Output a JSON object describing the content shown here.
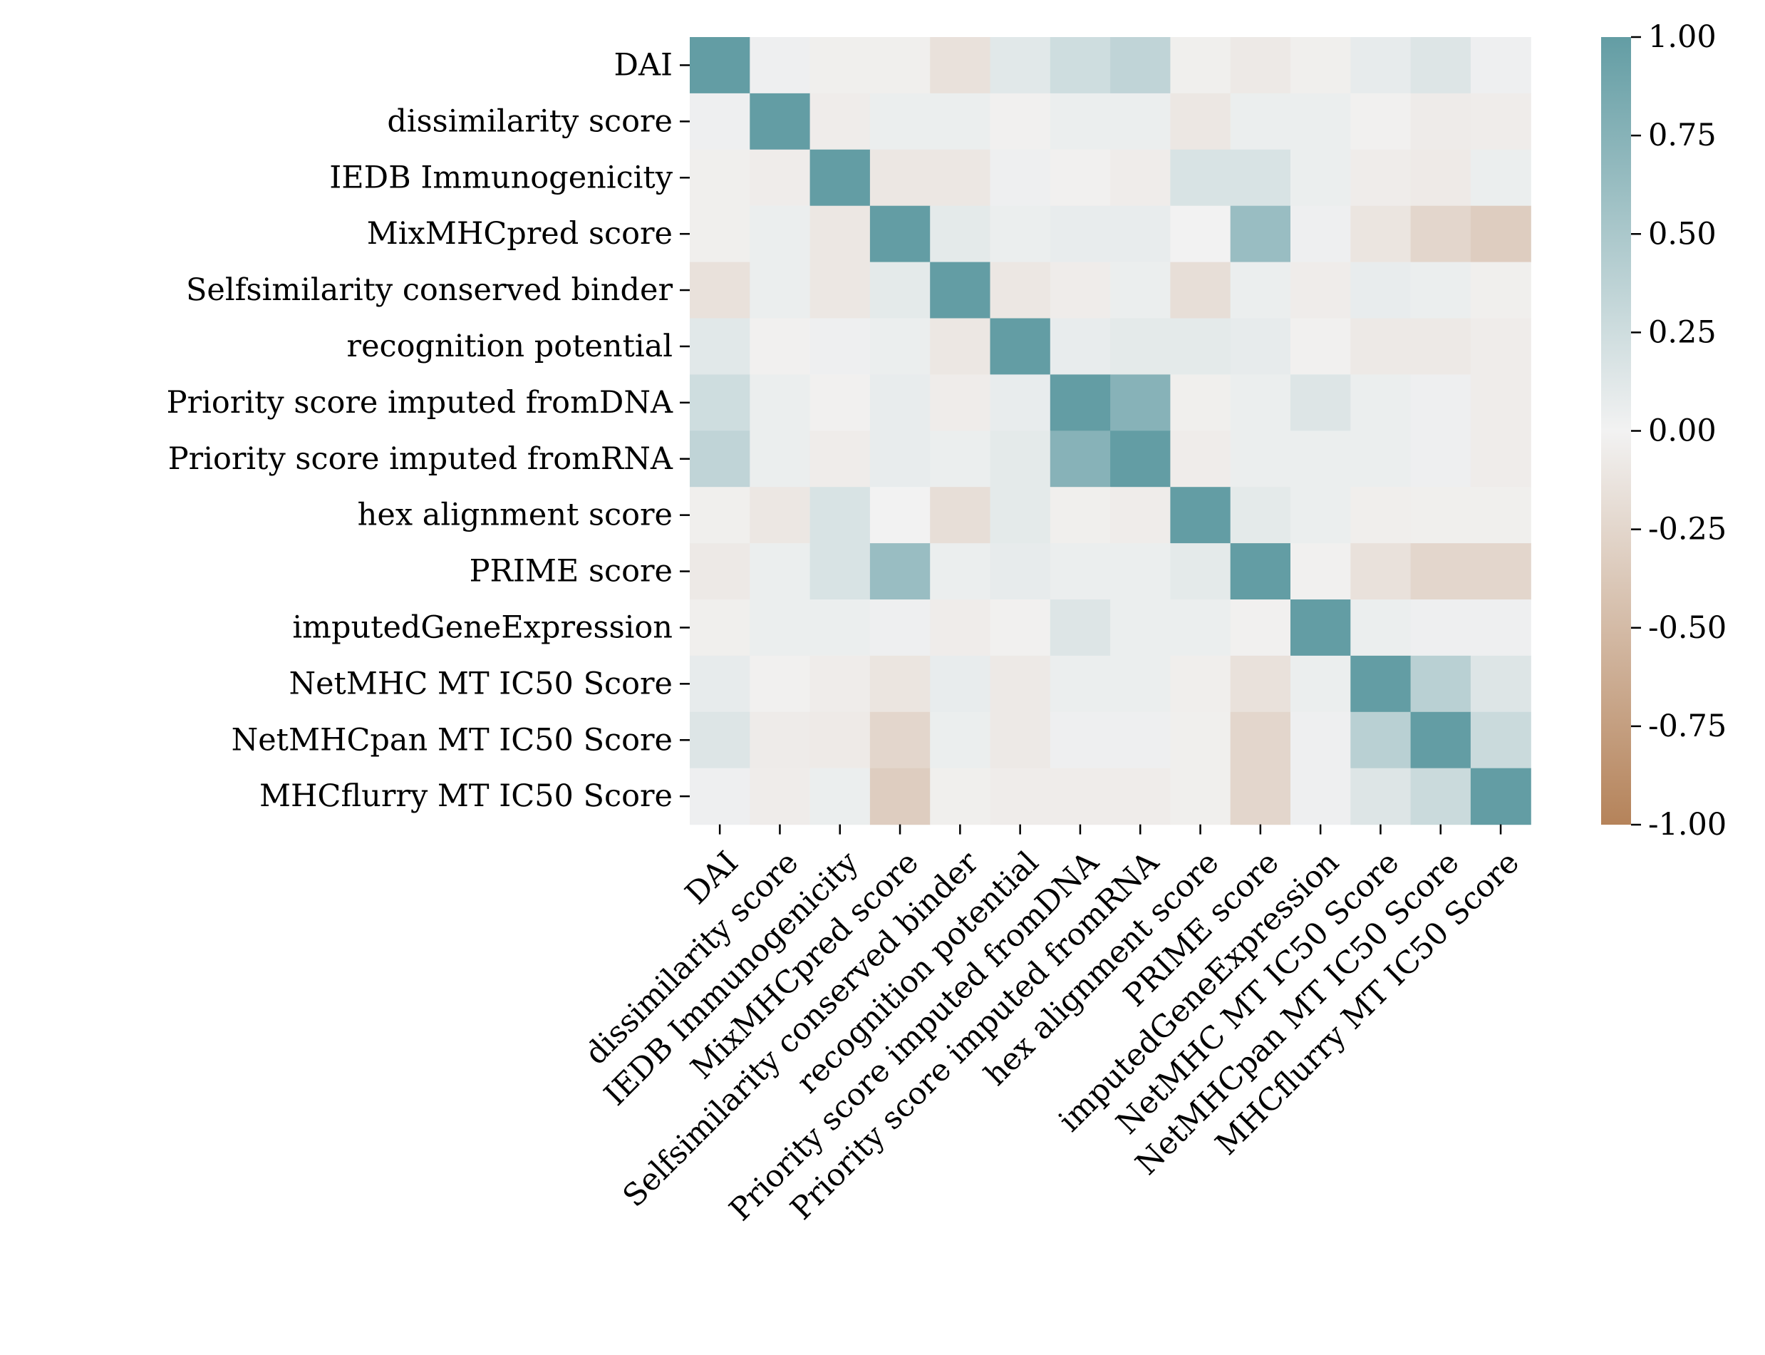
{
  "chart_data": {
    "type": "heatmap",
    "title": "",
    "xlabel": "",
    "ylabel": "",
    "labels": [
      "DAI",
      "dissimilarity score",
      "IEDB Immunogenicity",
      "MixMHCpred score",
      "Selfsimilarity conserved binder",
      "recognition potential",
      "Priority score imputed fromDNA",
      "Priority score imputed fromRNA",
      "hex alignment score",
      "PRIME score",
      "imputedGeneExpression",
      "NetMHC MT IC50 Score",
      "NetMHCpan MT IC50 Score",
      "MHCflurry MT IC50 Score"
    ],
    "matrix": [
      [
        1.0,
        0.03,
        -0.03,
        -0.03,
        -0.15,
        0.12,
        0.25,
        0.35,
        -0.03,
        -0.08,
        -0.03,
        0.08,
        0.15,
        0.03
      ],
      [
        0.03,
        1.0,
        -0.05,
        0.05,
        0.05,
        -0.02,
        0.05,
        0.05,
        -0.1,
        0.05,
        0.05,
        -0.02,
        -0.06,
        -0.05
      ],
      [
        -0.03,
        -0.05,
        1.0,
        -0.1,
        -0.1,
        0.03,
        -0.02,
        -0.05,
        0.18,
        0.18,
        0.05,
        -0.05,
        -0.07,
        0.05
      ],
      [
        -0.03,
        0.05,
        -0.1,
        1.0,
        0.1,
        0.05,
        0.07,
        0.07,
        0.0,
        0.62,
        0.03,
        -0.12,
        -0.25,
        -0.33
      ],
      [
        -0.15,
        0.05,
        -0.1,
        0.1,
        1.0,
        -0.1,
        -0.05,
        0.05,
        -0.18,
        0.05,
        -0.05,
        0.07,
        0.05,
        -0.03
      ],
      [
        0.12,
        -0.02,
        0.03,
        0.05,
        -0.1,
        1.0,
        0.07,
        0.1,
        0.1,
        0.08,
        -0.02,
        -0.08,
        -0.08,
        -0.05
      ],
      [
        0.25,
        0.05,
        -0.02,
        0.07,
        -0.05,
        0.07,
        1.0,
        0.75,
        -0.03,
        0.05,
        0.15,
        0.05,
        0.03,
        -0.05
      ],
      [
        0.35,
        0.05,
        -0.05,
        0.07,
        0.05,
        0.1,
        0.75,
        1.0,
        -0.05,
        0.05,
        0.05,
        0.05,
        0.03,
        -0.05
      ],
      [
        -0.03,
        -0.1,
        0.18,
        0.0,
        -0.18,
        0.1,
        -0.03,
        -0.05,
        1.0,
        0.1,
        0.05,
        -0.04,
        -0.03,
        -0.03
      ],
      [
        -0.08,
        0.05,
        0.18,
        0.62,
        0.05,
        0.08,
        0.05,
        0.05,
        0.1,
        1.0,
        -0.02,
        -0.15,
        -0.25,
        -0.25
      ],
      [
        -0.03,
        0.05,
        0.05,
        0.03,
        -0.05,
        -0.02,
        0.15,
        0.05,
        0.05,
        -0.02,
        1.0,
        0.05,
        0.03,
        0.03
      ],
      [
        0.08,
        -0.02,
        -0.05,
        -0.12,
        0.07,
        -0.08,
        0.05,
        0.05,
        -0.04,
        -0.15,
        0.05,
        1.0,
        0.4,
        0.15
      ],
      [
        0.15,
        -0.06,
        -0.07,
        -0.25,
        0.05,
        -0.08,
        0.03,
        0.03,
        -0.03,
        -0.25,
        0.03,
        0.4,
        1.0,
        0.28
      ],
      [
        0.03,
        -0.05,
        0.05,
        -0.33,
        -0.03,
        -0.05,
        -0.05,
        -0.05,
        -0.03,
        -0.25,
        0.03,
        0.15,
        0.28,
        1.0
      ]
    ],
    "vmin": -1.0,
    "vmax": 1.0,
    "colorbar_ticks": [
      "1.00",
      "0.75",
      "0.50",
      "0.25",
      "0.00",
      "-0.25",
      "-0.50",
      "-0.75",
      "-1.00"
    ],
    "colormap": {
      "low": "#b5835a",
      "mid": "#f2f2f2",
      "high": "#639da4"
    },
    "legend": "colorbar-right"
  }
}
